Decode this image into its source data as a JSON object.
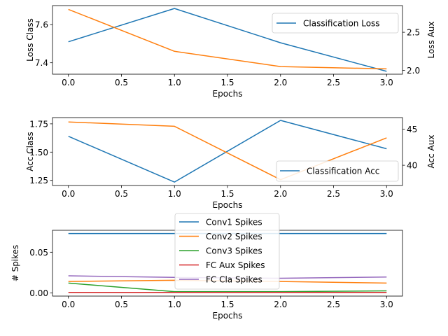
{
  "colors": {
    "blue": "#1f77b4",
    "orange": "#ff7f0e",
    "green": "#2ca02c",
    "red": "#d62728",
    "purple": "#9467bd"
  },
  "chart_data": [
    {
      "type": "line",
      "xlabel": "Epochs",
      "ylabel_left": "Loss Class",
      "ylabel_right": "Loss Aux",
      "x": [
        0,
        1,
        2,
        3
      ],
      "xlim": [
        -0.15,
        3.15
      ],
      "xticks": [
        "0.0",
        "0.5",
        "1.0",
        "1.5",
        "2.0",
        "2.5",
        "3.0"
      ],
      "ylim_left": [
        7.34,
        7.7
      ],
      "yticks_left": [
        "7.4",
        "7.6"
      ],
      "ylim_right": [
        1.95,
        2.85
      ],
      "yticks_right": [
        "2.0",
        "2.5"
      ],
      "legend": "Classification Loss",
      "legend_location": "upper right",
      "series": [
        {
          "name": "Classification Loss",
          "axis": "left",
          "color": "blue",
          "values": [
            7.51,
            7.685,
            7.505,
            7.355
          ]
        },
        {
          "axis": "right",
          "color": "orange",
          "values": [
            2.8,
            2.25,
            2.05,
            2.02
          ]
        }
      ]
    },
    {
      "type": "line",
      "xlabel": "Epochs",
      "ylabel_left": "Acc Class",
      "ylabel_right": "Acc Aux",
      "x": [
        0,
        1,
        2,
        3
      ],
      "xlim": [
        -0.15,
        3.15
      ],
      "xticks": [
        "0.0",
        "0.5",
        "1.0",
        "1.5",
        "2.0",
        "2.5",
        "3.0"
      ],
      "ylim_left": [
        1.205,
        1.805
      ],
      "yticks_left": [
        "1.25",
        "1.50",
        "1.75"
      ],
      "ylim_right": [
        37.2,
        46.6
      ],
      "yticks_right": [
        "40",
        "45"
      ],
      "legend": "Classification Acc",
      "legend_location": "lower right",
      "series": [
        {
          "name": "Classification Acc",
          "axis": "left",
          "color": "blue",
          "values": [
            1.64,
            1.235,
            1.78,
            1.53
          ]
        },
        {
          "axis": "right",
          "color": "orange",
          "values": [
            46.0,
            45.4,
            38.0,
            43.8
          ]
        }
      ]
    },
    {
      "type": "line",
      "xlabel": "Epochs",
      "ylabel_left": "# Spikes",
      "x": [
        0,
        1,
        2,
        3
      ],
      "xlim": [
        -0.15,
        3.15
      ],
      "xticks": [
        "0.0",
        "0.5",
        "1.0",
        "1.5",
        "2.0",
        "2.5",
        "3.0"
      ],
      "ylim_left": [
        -0.004,
        0.077
      ],
      "yticks_left": [
        "0.00",
        "0.05"
      ],
      "legend_location": "upper center",
      "series": [
        {
          "name": "Conv1 Spikes",
          "color": "blue",
          "values": [
            0.073,
            0.073,
            0.073,
            0.073
          ]
        },
        {
          "name": "Conv2 Spikes",
          "color": "orange",
          "values": [
            0.014,
            0.0155,
            0.014,
            0.012
          ]
        },
        {
          "name": "Conv3 Spikes",
          "color": "green",
          "values": [
            0.012,
            0.0015,
            0.0015,
            0.0025
          ]
        },
        {
          "name": "FC Aux Spikes",
          "color": "red",
          "values": [
            0.0005,
            0.0005,
            0.0005,
            0.0005
          ]
        },
        {
          "name": "FC Cla Spikes",
          "color": "purple",
          "values": [
            0.021,
            0.019,
            0.018,
            0.0195
          ]
        }
      ]
    }
  ]
}
